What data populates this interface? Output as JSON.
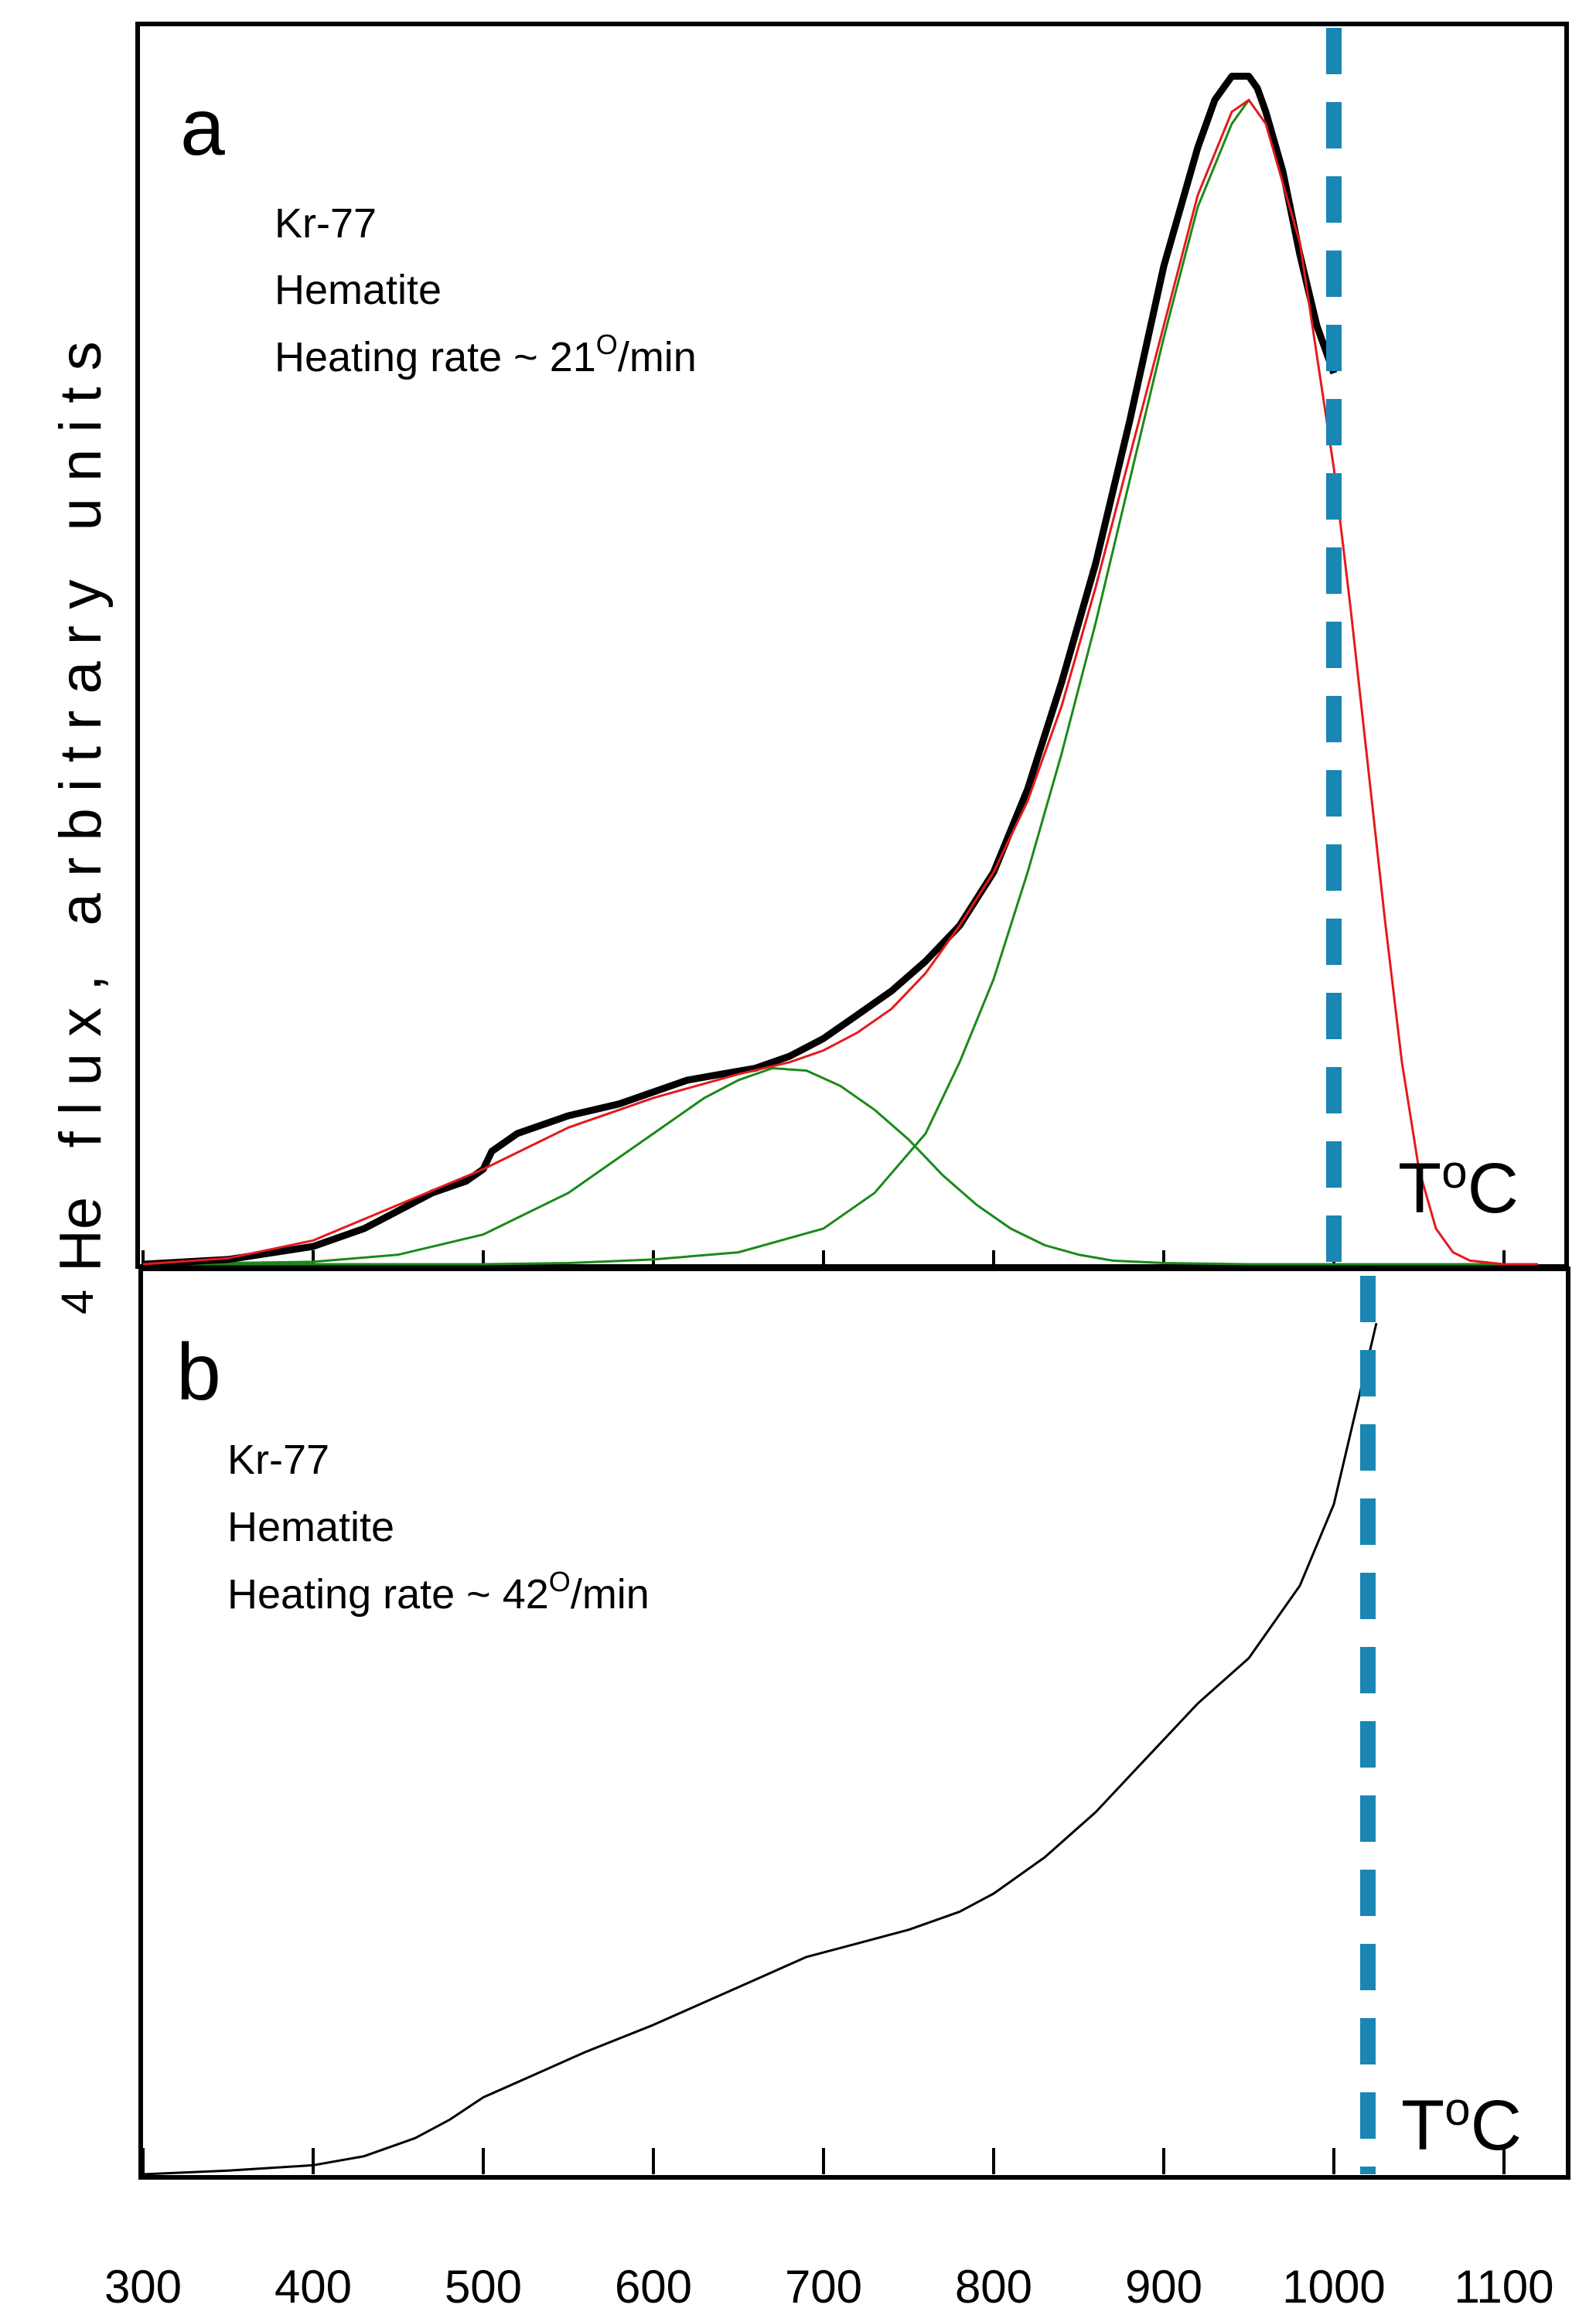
{
  "y_axis_label": {
    "superscript": "4",
    "text": "He   f l u x ,   a r b i t r a r y   u n i t s"
  },
  "x_tick_labels": [
    "300",
    "400",
    "500",
    "600",
    "700",
    "800",
    "900",
    "1000",
    "1100"
  ],
  "colors": {
    "measured": "#000000",
    "fit_total": "#e41a1c",
    "fit_components": "#1a8a1a",
    "dashed_line": "#1a86b4",
    "frame": "#000000"
  },
  "chart_data": [
    {
      "panel": "a",
      "type": "line",
      "annotation_lines": [
        "Kr-77",
        "Hematite"
      ],
      "rate_prefix": "Heating rate ~ 21",
      "rate_sup": "O",
      "rate_suffix": "/min",
      "xunit_main": "T",
      "xunit_sup": "o",
      "xunit_end": "C",
      "xlabel": "T°C",
      "ylabel": "4He flux, arbitrary units",
      "xlim": [
        300,
        1120
      ],
      "ylim": [
        0,
        103
      ],
      "dashed_vline_x": 1000,
      "series": [
        {
          "name": "measured",
          "x": [
            300,
            350,
            400,
            430,
            450,
            470,
            490,
            500,
            505,
            520,
            550,
            580,
            600,
            620,
            640,
            660,
            680,
            700,
            720,
            740,
            760,
            780,
            800,
            820,
            840,
            860,
            880,
            900,
            910,
            920,
            930,
            940,
            950,
            955,
            960,
            970,
            980,
            990,
            1000
          ],
          "y": [
            0,
            0.4,
            1.5,
            3,
            4.5,
            6,
            7,
            8,
            9.5,
            11,
            12.5,
            13.5,
            14.5,
            15.5,
            16,
            16.5,
            17.5,
            19,
            21,
            23,
            25.5,
            28.5,
            33,
            40,
            49,
            59,
            71,
            84,
            89,
            94,
            98,
            100,
            100,
            99,
            97,
            92,
            85,
            79,
            75
          ]
        },
        {
          "name": "fit total",
          "x": [
            300,
            350,
            400,
            450,
            500,
            550,
            600,
            650,
            680,
            700,
            720,
            740,
            760,
            780,
            800,
            820,
            840,
            860,
            880,
            900,
            920,
            940,
            950,
            960,
            980,
            1000,
            1010,
            1020,
            1030,
            1040,
            1050,
            1060,
            1070,
            1080,
            1100,
            1120
          ],
          "y": [
            0,
            0.5,
            2,
            5,
            8,
            11.5,
            14,
            16,
            17,
            18,
            19.5,
            21.5,
            24.5,
            28.5,
            33,
            39,
            47,
            57,
            68,
            79,
            90,
            97,
            98,
            96,
            86,
            67,
            55,
            42,
            29,
            17,
            8,
            3,
            1,
            0.3,
            0,
            0
          ]
        },
        {
          "name": "component 1",
          "x": [
            300,
            400,
            450,
            500,
            550,
            600,
            630,
            650,
            670,
            690,
            710,
            730,
            750,
            770,
            790,
            810,
            830,
            850,
            870,
            900,
            950,
            1000,
            1120
          ],
          "y": [
            0,
            0.2,
            0.8,
            2.5,
            6,
            11,
            14,
            15.5,
            16.5,
            16.3,
            15,
            13,
            10.5,
            7.5,
            5,
            3,
            1.6,
            0.8,
            0.3,
            0.1,
            0,
            0,
            0
          ]
        },
        {
          "name": "component 2",
          "x": [
            300,
            500,
            550,
            600,
            650,
            700,
            730,
            760,
            780,
            800,
            820,
            840,
            860,
            880,
            900,
            920,
            940,
            950
          ],
          "y": [
            0,
            0,
            0.1,
            0.4,
            1,
            3,
            6,
            11,
            17,
            24,
            33,
            43,
            54,
            66,
            78,
            89,
            96,
            98
          ]
        }
      ]
    },
    {
      "panel": "b",
      "type": "line",
      "annotation_lines": [
        "Kr-77",
        "Hematite"
      ],
      "rate_prefix": "Heating rate ~ 42",
      "rate_sup": "O",
      "rate_suffix": "/min",
      "xunit_main": "T",
      "xunit_sup": "o",
      "xunit_end": "C",
      "xlabel": "T°C",
      "ylabel": "4He flux, arbitrary units",
      "xlim": [
        300,
        1120
      ],
      "ylim": [
        0,
        103
      ],
      "dashed_vline_x": 1020,
      "xticks": [
        300,
        400,
        500,
        600,
        700,
        800,
        900,
        1000,
        1100
      ],
      "series": [
        {
          "name": "measured",
          "x": [
            300,
            350,
            400,
            430,
            460,
            480,
            500,
            530,
            560,
            600,
            630,
            660,
            690,
            720,
            750,
            780,
            800,
            830,
            860,
            890,
            920,
            950,
            980,
            1000,
            1010,
            1020,
            1025
          ],
          "y": [
            0,
            0.4,
            1,
            2,
            4,
            6,
            8.5,
            11,
            13.5,
            16.5,
            19,
            21.5,
            24,
            25.5,
            27,
            29,
            31,
            35,
            40,
            46,
            52,
            57,
            65,
            74,
            82,
            90,
            94
          ]
        }
      ]
    }
  ]
}
